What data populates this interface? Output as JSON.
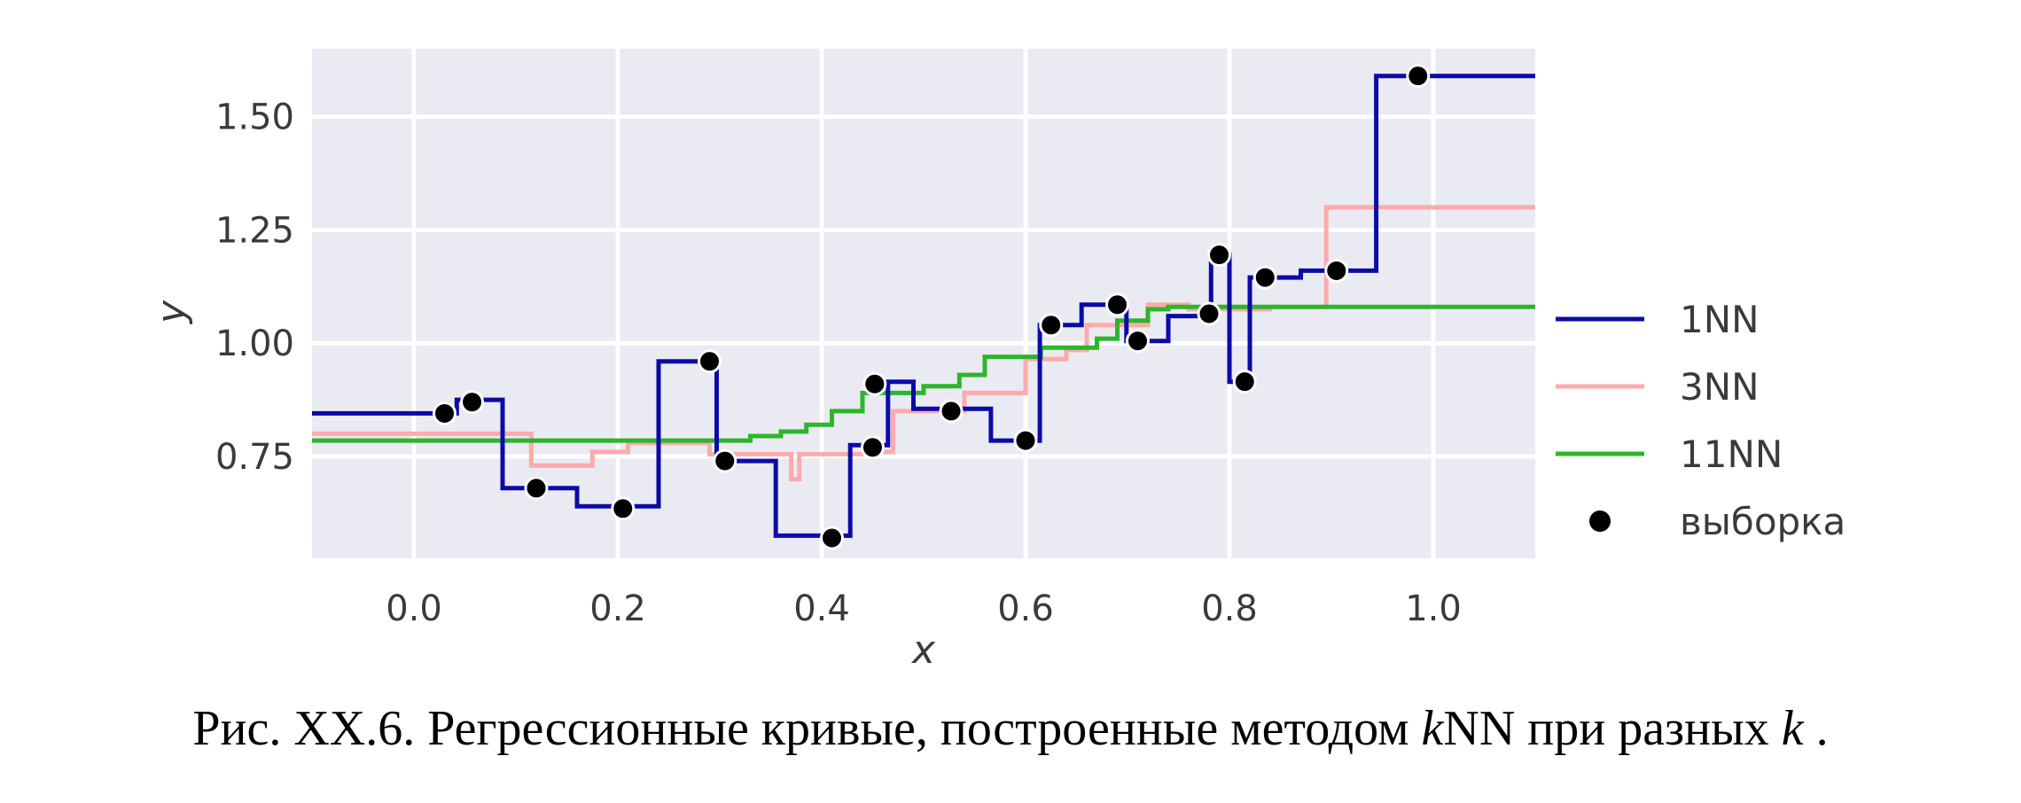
{
  "chart_data": {
    "type": "line",
    "xlabel": "x",
    "ylabel": "y",
    "xlim": [
      -0.1,
      1.1
    ],
    "ylim": [
      0.525,
      1.65
    ],
    "xticks": [
      0.0,
      0.2,
      0.4,
      0.6,
      0.8,
      1.0
    ],
    "xtick_labels": [
      "0.0",
      "0.2",
      "0.4",
      "0.6",
      "0.8",
      "1.0"
    ],
    "yticks": [
      0.75,
      1.0,
      1.25,
      1.5
    ],
    "ytick_labels": [
      "0.75",
      "1.00",
      "1.25",
      "1.50"
    ],
    "grid": true,
    "legend_position": "right",
    "series": [
      {
        "name": "1NN",
        "color": "#0b0ba8",
        "x": [
          -0.1,
          0.042,
          0.042,
          0.087,
          0.087,
          0.16,
          0.16,
          0.24,
          0.24,
          0.297,
          0.297,
          0.355,
          0.355,
          0.428,
          0.428,
          0.465,
          0.465,
          0.49,
          0.49,
          0.566,
          0.566,
          0.614,
          0.614,
          0.655,
          0.655,
          0.699,
          0.699,
          0.74,
          0.74,
          0.782,
          0.782,
          0.8,
          0.8,
          0.82,
          0.82,
          0.87,
          0.87,
          0.944,
          0.944,
          1.1
        ],
        "y": [
          0.845,
          0.845,
          0.875,
          0.875,
          0.68,
          0.68,
          0.64,
          0.64,
          0.96,
          0.96,
          0.74,
          0.74,
          0.575,
          0.575,
          0.775,
          0.775,
          0.915,
          0.915,
          0.855,
          0.855,
          0.785,
          0.785,
          1.04,
          1.04,
          1.085,
          1.085,
          1.005,
          1.005,
          1.06,
          1.06,
          1.195,
          1.195,
          0.915,
          0.915,
          1.145,
          1.145,
          1.16,
          1.16,
          1.59,
          1.59
        ]
      },
      {
        "name": "3NN",
        "color": "#ffaaaa",
        "x": [
          -0.1,
          0.115,
          0.115,
          0.175,
          0.175,
          0.21,
          0.21,
          0.29,
          0.29,
          0.37,
          0.37,
          0.378,
          0.378,
          0.45,
          0.45,
          0.47,
          0.47,
          0.54,
          0.54,
          0.6,
          0.6,
          0.64,
          0.64,
          0.66,
          0.66,
          0.72,
          0.72,
          0.76,
          0.76,
          0.84,
          0.84,
          0.895,
          0.895,
          1.1
        ],
        "y": [
          0.8,
          0.8,
          0.73,
          0.73,
          0.76,
          0.76,
          0.78,
          0.78,
          0.755,
          0.755,
          0.7,
          0.7,
          0.755,
          0.755,
          0.76,
          0.76,
          0.85,
          0.85,
          0.89,
          0.89,
          0.965,
          0.965,
          0.985,
          0.985,
          1.04,
          1.04,
          1.085,
          1.085,
          1.075,
          1.075,
          1.08,
          1.08,
          1.3,
          1.3
        ]
      },
      {
        "name": "11NN",
        "color": "#2db52d",
        "x": [
          -0.1,
          0.33,
          0.33,
          0.36,
          0.36,
          0.385,
          0.385,
          0.41,
          0.41,
          0.44,
          0.44,
          0.5,
          0.5,
          0.535,
          0.535,
          0.56,
          0.56,
          0.615,
          0.615,
          0.67,
          0.67,
          0.69,
          0.69,
          0.72,
          0.72,
          0.74,
          0.74,
          0.79,
          0.79,
          1.1
        ],
        "y": [
          0.785,
          0.785,
          0.795,
          0.795,
          0.805,
          0.805,
          0.82,
          0.82,
          0.85,
          0.85,
          0.89,
          0.89,
          0.905,
          0.905,
          0.93,
          0.93,
          0.97,
          0.97,
          0.99,
          0.99,
          1.01,
          1.01,
          1.05,
          1.05,
          1.075,
          1.075,
          1.08,
          1.08,
          1.08,
          1.08
        ]
      }
    ],
    "points": {
      "name": "выборка",
      "color": "#000000",
      "x": [
        0.03,
        0.057,
        0.12,
        0.205,
        0.29,
        0.305,
        0.41,
        0.45,
        0.452,
        0.527,
        0.6,
        0.625,
        0.69,
        0.71,
        0.78,
        0.79,
        0.815,
        0.835,
        0.905,
        0.985
      ],
      "y": [
        0.845,
        0.87,
        0.68,
        0.635,
        0.96,
        0.74,
        0.57,
        0.77,
        0.91,
        0.85,
        0.785,
        1.04,
        1.085,
        1.005,
        1.065,
        1.195,
        0.915,
        1.145,
        1.16,
        1.59
      ]
    }
  },
  "caption": {
    "prefix": "Рис. XX.6. Регрессионные кривые, построенные методом ",
    "k1": "k",
    "mid": "NN при разных ",
    "k2": "k",
    "suffix": " ."
  }
}
